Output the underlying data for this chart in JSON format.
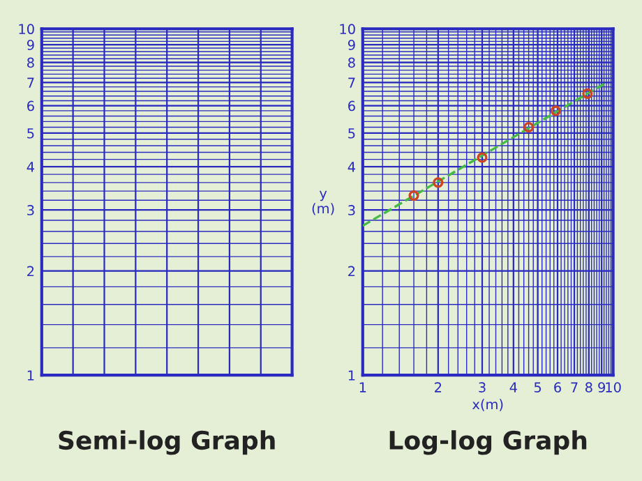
{
  "chart_data": [
    {
      "type": "line",
      "title": "Semi-log Graph",
      "log": "y",
      "categories": [
        null,
        null,
        null,
        null,
        null,
        null,
        null,
        null,
        null
      ],
      "values": [
        null,
        null,
        null,
        null,
        null,
        null,
        null,
        null,
        null
      ],
      "ylim": [
        1,
        10
      ],
      "yticks": [
        1,
        2,
        3,
        4,
        5,
        6,
        7,
        8,
        9,
        10
      ],
      "tick_labels": "y",
      "grid": true
    },
    {
      "type": "scatter",
      "title": "Log-log Graph",
      "xlabel": "x(m)",
      "ylabel": "y\n(m)",
      "log": "xy",
      "xlim": [
        1,
        10
      ],
      "xticks": [
        1,
        2,
        3,
        4,
        5,
        6,
        7,
        8,
        9,
        10
      ],
      "ylim": [
        1,
        10
      ],
      "yticks": [
        1,
        2,
        3,
        4,
        5,
        6,
        7,
        8,
        9,
        10
      ],
      "grid": true,
      "series": [
        {
          "type": "line",
          "line_style": "dashed",
          "marker": "none",
          "color": "#44bb44",
          "x": [
            1,
            9.4
          ],
          "values": [
            2.7,
            7.0
          ]
        },
        {
          "marker": "circle",
          "color": "#cc4422",
          "x": [
            1.6,
            2.0,
            3.0,
            4.6,
            5.9,
            7.9
          ],
          "values": [
            3.3,
            3.6,
            4.25,
            5.2,
            5.8,
            6.5
          ]
        }
      ]
    }
  ]
}
